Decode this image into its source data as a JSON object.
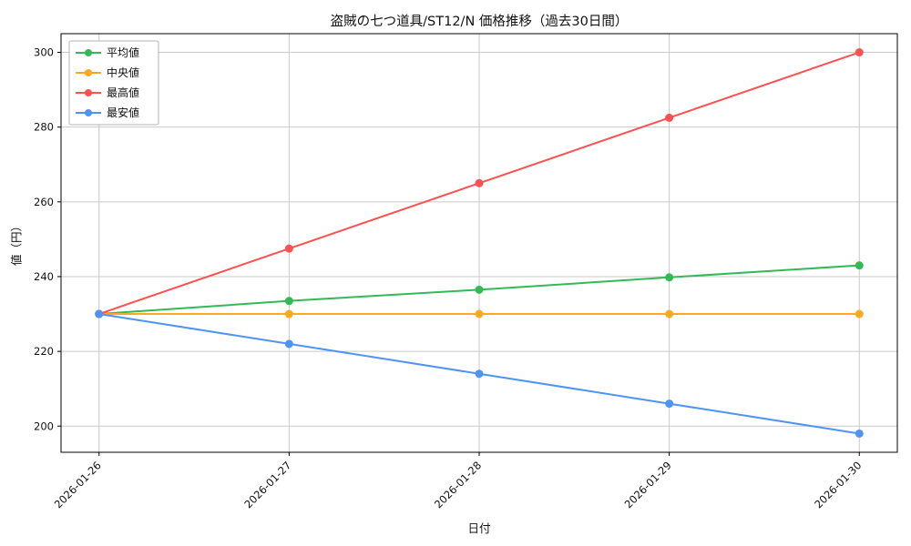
{
  "chart_data": {
    "type": "line",
    "title": "盗賊の七つ道具/ST12/N 価格推移（過去30日間）",
    "xlabel": "日付",
    "ylabel": "値（円）",
    "x": [
      "2026-01-26",
      "2026-01-27",
      "2026-01-28",
      "2026-01-29",
      "2026-01-30"
    ],
    "series": [
      {
        "name": "平均値",
        "color": "#33b955",
        "values": [
          230,
          233.5,
          236.5,
          239.8,
          243
        ]
      },
      {
        "name": "中央値",
        "color": "#ffa820",
        "values": [
          230,
          230,
          230,
          230,
          230
        ]
      },
      {
        "name": "最高値",
        "color": "#fb5150",
        "values": [
          230,
          247.5,
          265,
          282.5,
          300
        ]
      },
      {
        "name": "最安値",
        "color": "#4f94f4",
        "values": [
          230,
          222,
          214,
          206,
          198
        ]
      }
    ],
    "ylim": [
      193,
      305
    ],
    "yticks": [
      200,
      220,
      240,
      260,
      280,
      300
    ],
    "grid": true,
    "legend_position": "upper left",
    "colors": {
      "grid": "#c9c9c9",
      "spine": "#000000",
      "text": "#111111",
      "legend_border": "#b3b3b3"
    }
  }
}
